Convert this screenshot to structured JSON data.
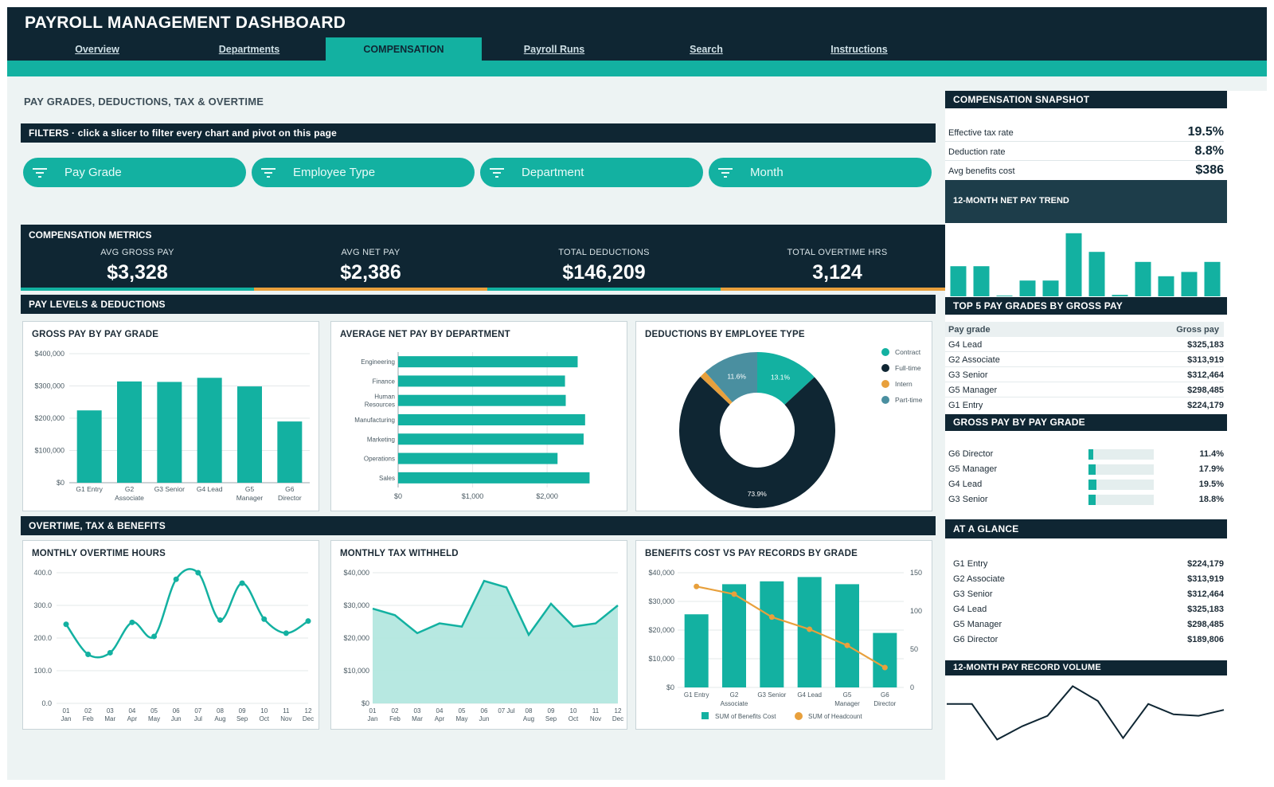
{
  "app": {
    "title": "PAYROLL MANAGEMENT DASHBOARD"
  },
  "nav": {
    "tabs": [
      {
        "label": "Overview",
        "active": false
      },
      {
        "label": "Departments",
        "active": false
      },
      {
        "label": "COMPENSATION",
        "active": true
      },
      {
        "label": "Payroll Runs",
        "active": false
      },
      {
        "label": "Search",
        "active": false
      },
      {
        "label": "Instructions",
        "active": false
      }
    ]
  },
  "page": {
    "section_title": "PAY GRADES, DEDUCTIONS, TAX & OVERTIME",
    "filters_header": "FILTERS  ·  click a slicer to filter every chart and pivot on this page",
    "slicers": [
      "Pay Grade",
      "Employee Type",
      "Department",
      "Month"
    ],
    "metrics_header": "COMPENSATION METRICS",
    "metrics": [
      {
        "label": "AVG GROSS PAY",
        "value": "$3,328",
        "accent": "#13b1a1"
      },
      {
        "label": "AVG NET PAY",
        "value": "$2,386",
        "accent": "#e8a03c"
      },
      {
        "label": "TOTAL DEDUCTIONS",
        "value": "$146,209",
        "accent": "#13b1a1"
      },
      {
        "label": "TOTAL OVERTIME HRS",
        "value": "3,124",
        "accent": "#e8a03c"
      }
    ],
    "pay_levels_header": "PAY LEVELS & DEDUCTIONS",
    "overtime_header": "OVERTIME, TAX & BENEFITS"
  },
  "colors": {
    "teal": "#13b1a1",
    "navy": "#0f2633",
    "orange": "#e8a03c",
    "slate": "#4a8fa0",
    "light_teal": "#b3e7df"
  },
  "chart_data": [
    {
      "id": "gross-pay-by-grade",
      "type": "bar",
      "title": "GROSS PAY BY PAY GRADE",
      "categories": [
        "G1 Entry",
        "G2 Associate",
        "G3 Senior",
        "G4 Lead",
        "G5 Manager",
        "G6 Director"
      ],
      "category_lines": [
        [
          "G1 Entry"
        ],
        [
          "G2",
          "Associate"
        ],
        [
          "G3 Senior"
        ],
        [
          "G4 Lead"
        ],
        [
          "G5",
          "Manager"
        ],
        [
          "G6",
          "Director"
        ]
      ],
      "values": [
        224179,
        313919,
        312464,
        325183,
        298485,
        189806
      ],
      "ylim": [
        0,
        400000
      ],
      "yticks": [
        0,
        100000,
        200000,
        300000,
        400000
      ],
      "ytick_labels": [
        "$0",
        "$100,000",
        "$200,000",
        "$300,000",
        "$400,000"
      ]
    },
    {
      "id": "avg-net-pay-by-dept",
      "type": "bar",
      "orientation": "horizontal",
      "title": "AVERAGE NET PAY BY DEPARTMENT",
      "categories": [
        "Engineering",
        "Finance",
        "Human Resources",
        "Manufacturing",
        "Marketing",
        "Operations",
        "Sales"
      ],
      "category_lines": [
        [
          "Engineering"
        ],
        [
          "Finance"
        ],
        [
          "Human",
          "Resources"
        ],
        [
          "Manufacturing"
        ],
        [
          "Marketing"
        ],
        [
          "Operations"
        ],
        [
          "Sales"
        ]
      ],
      "values": [
        2410,
        2240,
        2250,
        2510,
        2490,
        2140,
        2570
      ],
      "xlim": [
        0,
        2950
      ],
      "xticks": [
        0,
        1000,
        2000
      ],
      "xtick_labels": [
        "$0",
        "$1,000",
        "$2,000"
      ]
    },
    {
      "id": "deductions-by-type",
      "type": "pie",
      "title": "DEDUCTIONS BY EMPLOYEE TYPE",
      "labels": [
        "Contract",
        "Full-time",
        "Intern",
        "Part-time"
      ],
      "values": [
        13.1,
        73.9,
        1.4,
        11.6
      ],
      "value_labels": [
        "13.1%",
        "73.9%",
        "",
        "11.6%"
      ],
      "colors": [
        "#13b1a1",
        "#0f2633",
        "#e8a03c",
        "#4a8fa0"
      ],
      "legend": "right"
    },
    {
      "id": "monthly-overtime",
      "type": "line",
      "title": "MONTHLY OVERTIME HOURS",
      "x": [
        "01",
        "02",
        "03",
        "04",
        "05",
        "06",
        "07",
        "08",
        "09",
        "10",
        "11",
        "12"
      ],
      "x_sub": [
        "Jan",
        "Feb",
        "Mar",
        "Apr",
        "May",
        "Jun",
        "Jul",
        "Aug",
        "Sep",
        "Oct",
        "Nov",
        "Dec"
      ],
      "values": [
        242,
        150,
        155,
        248,
        205,
        380,
        400,
        255,
        368,
        258,
        215,
        252
      ],
      "ylim": [
        0,
        400
      ],
      "yticks": [
        0,
        100,
        200,
        300,
        400
      ],
      "ytick_labels": [
        "0.0",
        "100.0",
        "200.0",
        "300.0",
        "400.0"
      ]
    },
    {
      "id": "monthly-tax",
      "type": "area",
      "title": "MONTHLY TAX WITHHELD",
      "x": [
        "01",
        "02",
        "03",
        "04",
        "05",
        "06",
        "07 Jul",
        "08",
        "09",
        "10",
        "11",
        "12"
      ],
      "x_sub": [
        "Jan",
        "Feb",
        "Mar",
        "Apr",
        "May",
        "Jun",
        "",
        "Aug",
        "Sep",
        "Oct",
        "Nov",
        "Dec"
      ],
      "values": [
        29000,
        27000,
        21500,
        24500,
        23500,
        37500,
        35500,
        21000,
        30500,
        23500,
        24500,
        30000
      ],
      "ylim": [
        0,
        40000
      ],
      "yticks": [
        0,
        10000,
        20000,
        30000,
        40000
      ],
      "ytick_labels": [
        "$0",
        "$10,000",
        "$20,000",
        "$30,000",
        "$40,000"
      ]
    },
    {
      "id": "benefits-vs-records",
      "type": "bar",
      "title": "BENEFITS COST VS PAY RECORDS BY GRADE",
      "categories": [
        "G1 Entry",
        "G2 Associate",
        "G3 Senior",
        "G4 Lead",
        "G5 Manager",
        "G6 Director"
      ],
      "category_lines": [
        [
          "G1 Entry"
        ],
        [
          "G2",
          "Associate"
        ],
        [
          "G3 Senior"
        ],
        [
          "G4 Lead"
        ],
        [
          "G5",
          "Manager"
        ],
        [
          "G6",
          "Director"
        ]
      ],
      "series": [
        {
          "name": "SUM of Benefits Cost",
          "type": "bar",
          "axis": "left",
          "values": [
            25500,
            36000,
            37000,
            38500,
            36000,
            19000
          ]
        },
        {
          "name": "SUM of Headcount",
          "type": "line",
          "axis": "right",
          "values": [
            132,
            122,
            92,
            76,
            55,
            26
          ]
        }
      ],
      "ylim": [
        0,
        40000
      ],
      "yticks": [
        0,
        10000,
        20000,
        30000,
        40000
      ],
      "ytick_labels": [
        "$0",
        "$10,000",
        "$20,000",
        "$30,000",
        "$40,000"
      ],
      "y2lim": [
        0,
        150
      ],
      "y2ticks": [
        0,
        50,
        100,
        150
      ],
      "y2tick_labels": [
        "0",
        "50",
        "100",
        "150"
      ],
      "legend": "bottom"
    },
    {
      "id": "net-pay-trend",
      "type": "bar",
      "title": "12-MONTH NET PAY TREND",
      "values": [
        42,
        42,
        1,
        22,
        22,
        88,
        62,
        2,
        48,
        28,
        34,
        48
      ],
      "ylim": [
        0,
        90
      ]
    },
    {
      "id": "pay-record-volume",
      "type": "line",
      "title": "12-MONTH PAY RECORD VOLUME",
      "values": [
        68,
        68,
        20,
        38,
        52,
        92,
        72,
        22,
        68,
        54,
        52,
        60
      ],
      "ylim": [
        0,
        100
      ]
    }
  ],
  "side": {
    "snapshot_header": "COMPENSATION SNAPSHOT",
    "snapshot": [
      {
        "label": "Effective tax rate",
        "value": "19.5%"
      },
      {
        "label": "Deduction rate",
        "value": "8.8%"
      },
      {
        "label": "Avg benefits cost",
        "value": "$386"
      }
    ],
    "trend_header": "12-MONTH NET PAY TREND",
    "top5_header": "TOP 5 PAY GRADES BY GROSS PAY",
    "top5_columns": [
      "Pay grade",
      "Gross pay"
    ],
    "top5": [
      {
        "grade": "G4 Lead",
        "value": "$325,183"
      },
      {
        "grade": "G2 Associate",
        "value": "$313,919"
      },
      {
        "grade": "G3 Senior",
        "value": "$312,464"
      },
      {
        "grade": "G5 Manager",
        "value": "$298,485"
      },
      {
        "grade": "G1 Entry",
        "value": "$224,179"
      }
    ],
    "databar_header": "GROSS PAY BY PAY GRADE",
    "databars": [
      {
        "grade": "G6 Director",
        "pct": "11.4%",
        "fraction": 0.114
      },
      {
        "grade": "G5 Manager",
        "pct": "17.9%",
        "fraction": 0.179
      },
      {
        "grade": "G4 Lead",
        "pct": "19.5%",
        "fraction": 0.195
      },
      {
        "grade": "G3 Senior",
        "pct": "18.8%",
        "fraction": 0.188
      }
    ],
    "glance_header": "AT A GLANCE",
    "glance": [
      {
        "grade": "G1 Entry",
        "value": "$224,179"
      },
      {
        "grade": "G2 Associate",
        "value": "$313,919"
      },
      {
        "grade": "G3 Senior",
        "value": "$312,464"
      },
      {
        "grade": "G4 Lead",
        "value": "$325,183"
      },
      {
        "grade": "G5 Manager",
        "value": "$298,485"
      },
      {
        "grade": "G6 Director",
        "value": "$189,806"
      }
    ],
    "volume_header": "12-MONTH PAY RECORD VOLUME"
  }
}
